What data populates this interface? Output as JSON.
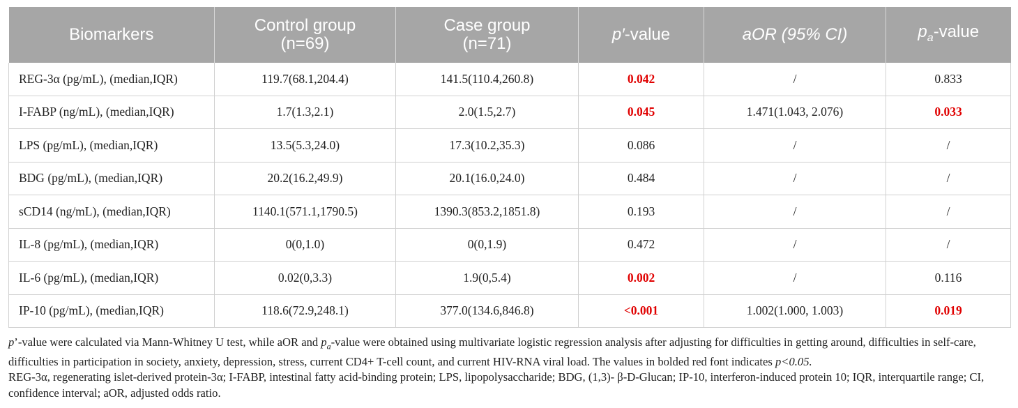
{
  "table": {
    "headers": {
      "biomarkers": "Biomarkers",
      "control_line1": "Control group",
      "control_line2": "(n=69)",
      "case_line1": "Case group",
      "case_line2": "(n=71)",
      "p_prime_symbol": "p′",
      "p_prime_suffix": "-value",
      "aor": "aOR (95% CI)",
      "pa_symbol": "p",
      "pa_subscript": "a",
      "pa_suffix": "-value"
    },
    "rows": [
      {
        "biomarker": "REG-3α (pg/mL), (median,IQR)",
        "control": "119.7(68.1,204.4)",
        "case": "141.5(110.4,260.8)",
        "p_prime": "0.042",
        "aor": "/",
        "pa": "0.833"
      },
      {
        "biomarker": "I-FABP (ng/mL), (median,IQR)",
        "control": "1.7(1.3,2.1)",
        "case": "2.0(1.5,2.7)",
        "p_prime": "0.045",
        "aor": "1.471(1.043, 2.076)",
        "pa": "0.033"
      },
      {
        "biomarker": "LPS (pg/mL), (median,IQR)",
        "control": "13.5(5.3,24.0)",
        "case": "17.3(10.2,35.3)",
        "p_prime": "0.086",
        "aor": "/",
        "pa": "/"
      },
      {
        "biomarker": "BDG (pg/mL), (median,IQR)",
        "control": "20.2(16.2,49.9)",
        "case": "20.1(16.0,24.0)",
        "p_prime": "0.484",
        "aor": "/",
        "pa": "/"
      },
      {
        "biomarker": "sCD14 (ng/mL), (median,IQR)",
        "control": "1140.1(571.1,1790.5)",
        "case": "1390.3(853.2,1851.8)",
        "p_prime": "0.193",
        "aor": "/",
        "pa": "/"
      },
      {
        "biomarker": "IL-8 (pg/mL), (median,IQR)",
        "control": "0(0,1.0)",
        "case": "0(0,1.9)",
        "p_prime": "0.472",
        "aor": "/",
        "pa": "/"
      },
      {
        "biomarker": "IL-6 (pg/mL), (median,IQR)",
        "control": "0.02(0,3.3)",
        "case": "1.9(0,5.4)",
        "p_prime": "0.002",
        "aor": "/",
        "pa": "0.116"
      },
      {
        "biomarker": "IP-10 (pg/mL), (median,IQR)",
        "control": "118.6(72.9,248.1)",
        "case": "377.0(134.6,846.8)",
        "p_prime": "<0.001",
        "aor": "1.002(1.000, 1.003)",
        "pa": "0.019"
      }
    ]
  },
  "footnote": {
    "p1_symbol": "p",
    "p1_text_a": "’-value were calculated via Mann-Whitney U test, while aOR and ",
    "p1_pa_symbol": "p",
    "p1_pa_sub": "a",
    "p1_text_b": "-value were obtained using multivariate logistic regression analysis after adjusting for difficulties in getting around, difficulties in self-care, difficulties in participation in society, anxiety, depression, stress, current CD4+ T-cell count, and current HIV-RNA viral load. The values in bolded red font indicates ",
    "p1_threshold": "p<0.05.",
    "p2_text": "REG-3α, regenerating islet-derived protein-3α; I-FABP, intestinal fatty acid-binding protein; LPS, lipopolysaccharide; BDG, (1,3)- β-D-Glucan; IP-10, interferon-induced protein 10; IQR, interquartile range; CI, confidence interval; aOR, adjusted odds ratio."
  },
  "colors": {
    "header_bg": "#a6a6a6",
    "header_text": "#ffffff",
    "significant": "#e00000",
    "grid": "#d0d0d0"
  }
}
